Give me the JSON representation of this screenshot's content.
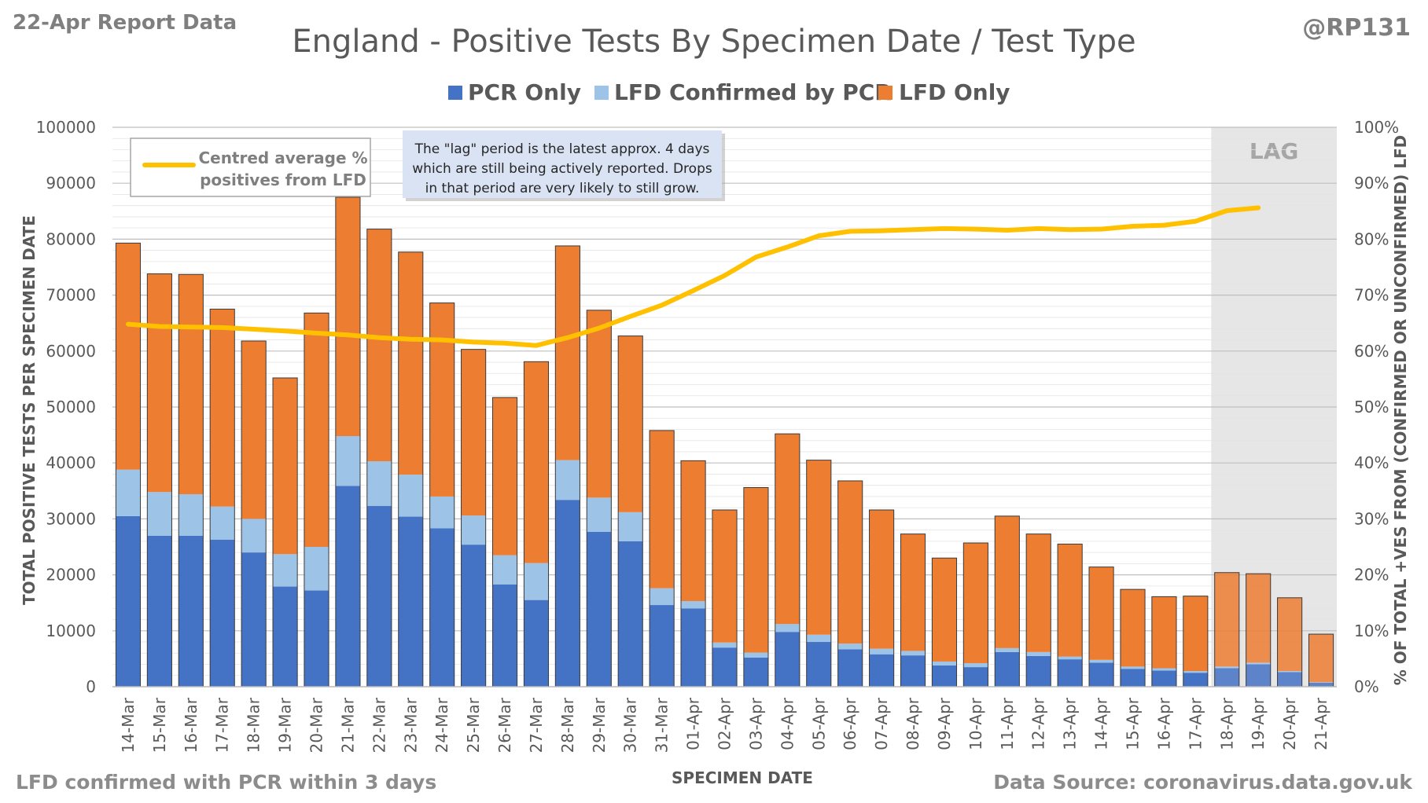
{
  "header": {
    "report_label": "22-Apr Report Data",
    "author": "@RP131"
  },
  "footer": {
    "left_note": "LFD confirmed with PCR within 3 days",
    "source": "Data Source: coronavirus.data.gov.uk"
  },
  "colors": {
    "pcr_only": "#4472c4",
    "lfd_confirmed": "#9dc3e6",
    "lfd_only": "#ed7d31",
    "average_line": "#ffc000",
    "lag_shade": "#e7e6e6"
  },
  "chart_data": {
    "type": "bar",
    "stacked": true,
    "title": "England - Positive Tests By Specimen Date / Test Type",
    "xlabel": "SPECIMEN DATE",
    "ylabel": "TOTAL POSITIVE TESTS PER SPECIMEN DATE",
    "y2label": "% OF TOTAL +VES FROM (CONFIRMED OR UNCONFIRMED) LFD",
    "ylim": [
      0,
      100000
    ],
    "y2lim": [
      0,
      100
    ],
    "yticks": [
      "0",
      "10000",
      "20000",
      "30000",
      "40000",
      "50000",
      "60000",
      "70000",
      "80000",
      "90000",
      "100000"
    ],
    "y2ticks": [
      "0%",
      "10%",
      "20%",
      "30%",
      "40%",
      "50%",
      "60%",
      "70%",
      "80%",
      "90%",
      "100%"
    ],
    "grid": true,
    "legend_position": "top",
    "categories": [
      "14-Mar",
      "15-Mar",
      "16-Mar",
      "17-Mar",
      "18-Mar",
      "19-Mar",
      "20-Mar",
      "21-Mar",
      "22-Mar",
      "23-Mar",
      "24-Mar",
      "25-Mar",
      "26-Mar",
      "27-Mar",
      "28-Mar",
      "29-Mar",
      "30-Mar",
      "31-Mar",
      "01-Apr",
      "02-Apr",
      "03-Apr",
      "04-Apr",
      "05-Apr",
      "06-Apr",
      "07-Apr",
      "08-Apr",
      "09-Apr",
      "10-Apr",
      "11-Apr",
      "12-Apr",
      "13-Apr",
      "14-Apr",
      "15-Apr",
      "16-Apr",
      "17-Apr",
      "18-Apr",
      "19-Apr",
      "20-Apr",
      "21-Apr"
    ],
    "series": [
      {
        "name": "PCR Only",
        "values": [
          30500,
          27000,
          27000,
          26300,
          24000,
          17900,
          17200,
          35900,
          32300,
          30400,
          28300,
          25400,
          18300,
          15500,
          33400,
          27700,
          26000,
          14600,
          14000,
          7000,
          5200,
          9800,
          8000,
          6700,
          5800,
          5600,
          3800,
          3500,
          6200,
          5500,
          4900,
          4300,
          3200,
          2900,
          2500,
          3300,
          4000,
          2600,
          700
        ]
      },
      {
        "name": "LFD Confirmed by PCR",
        "values": [
          8300,
          7800,
          7400,
          5900,
          6000,
          5800,
          7800,
          8900,
          8000,
          7500,
          5700,
          5200,
          5200,
          6600,
          7100,
          6100,
          5200,
          3000,
          1300,
          900,
          900,
          1400,
          1300,
          1000,
          1000,
          800,
          700,
          700,
          700,
          700,
          500,
          500,
          400,
          400,
          300,
          300,
          300,
          200,
          100
        ]
      },
      {
        "name": "LFD Only",
        "values": [
          40500,
          39000,
          39300,
          35300,
          31800,
          31500,
          41800,
          42700,
          41500,
          39800,
          34600,
          29700,
          28200,
          36000,
          38300,
          33500,
          31500,
          28200,
          25100,
          23700,
          29500,
          34000,
          31200,
          29100,
          24800,
          20900,
          18500,
          21500,
          23600,
          21100,
          20100,
          16600,
          13800,
          12800,
          13400,
          16800,
          15900,
          13100,
          8600
        ]
      }
    ],
    "line_series": {
      "name": "Centred average % positives from LFD",
      "axis": "secondary",
      "values": [
        64.8,
        64.4,
        64.3,
        64.2,
        63.9,
        63.6,
        63.2,
        62.9,
        62.4,
        62.1,
        62.0,
        61.6,
        61.4,
        61.0,
        62.4,
        64.1,
        66.2,
        68.2,
        70.8,
        73.5,
        76.8,
        78.6,
        80.6,
        81.4,
        81.5,
        81.7,
        81.9,
        81.8,
        81.6,
        81.9,
        81.7,
        81.8,
        82.3,
        82.5,
        83.2,
        85.1,
        85.6,
        null,
        null
      ]
    },
    "annotations": {
      "lag_label": "LAG",
      "lag_start": "18-Apr",
      "lag_end": "21-Apr",
      "note": [
        "The \"lag\" period is the latest approx. 4 days",
        "which are still being actively reported.  Drops",
        "in that period are very likely to still grow."
      ],
      "line_legend": [
        "Centred average %",
        "positives from LFD"
      ]
    }
  }
}
